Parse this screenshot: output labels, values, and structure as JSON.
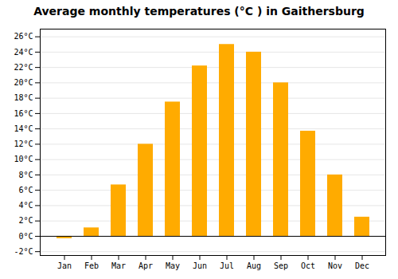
{
  "chart_data": {
    "type": "bar",
    "title": "Average monthly temperatures (°C ) in Gaithersburg",
    "categories": [
      "Jan",
      "Feb",
      "Mar",
      "Apr",
      "May",
      "Jun",
      "Jul",
      "Aug",
      "Sep",
      "Oct",
      "Nov",
      "Dec"
    ],
    "values": [
      -0.3,
      1.1,
      6.7,
      12.0,
      17.5,
      22.2,
      25.0,
      24.0,
      20.0,
      13.7,
      8.0,
      2.5
    ],
    "color": "#FFAB00",
    "ylim": [
      -2.5,
      27
    ],
    "yticks": [
      {
        "value": -2,
        "label": "-2°C"
      },
      {
        "value": 0,
        "label": "0°C"
      },
      {
        "value": 2,
        "label": "2°C"
      },
      {
        "value": 4,
        "label": "4°C"
      },
      {
        "value": 6,
        "label": "6°C"
      },
      {
        "value": 8,
        "label": "8°C"
      },
      {
        "value": 10,
        "label": "10°C"
      },
      {
        "value": 12,
        "label": "12°C"
      },
      {
        "value": 14,
        "label": "14°C"
      },
      {
        "value": 16,
        "label": "16°C"
      },
      {
        "value": 18,
        "label": "18°C"
      },
      {
        "value": 20,
        "label": "20°C"
      },
      {
        "value": 22,
        "label": "22°C"
      },
      {
        "value": 24,
        "label": "24°C"
      },
      {
        "value": 26,
        "label": "26°C"
      }
    ],
    "grid": true
  }
}
